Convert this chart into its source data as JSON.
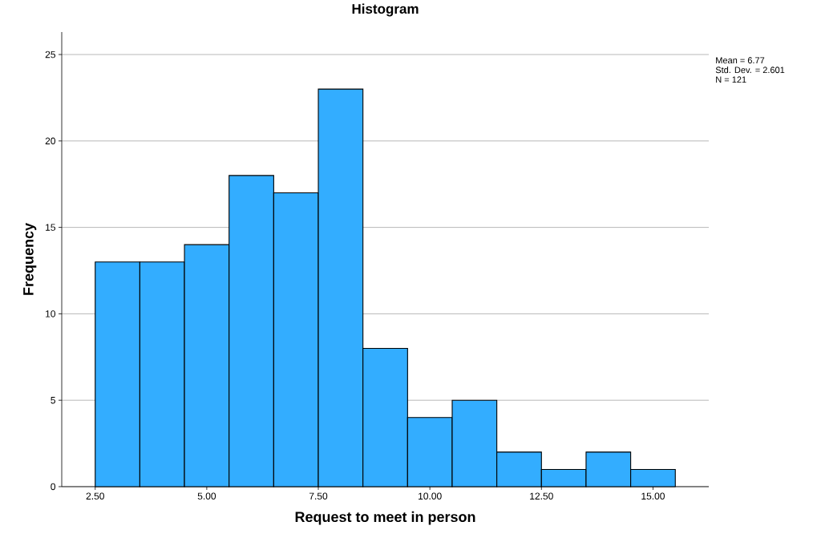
{
  "chart_data": {
    "type": "histogram",
    "title": "Histogram",
    "xlabel": "Request to meet in person",
    "ylabel": "Frequency",
    "bins": [
      2.5,
      3.5,
      4.5,
      5.5,
      6.5,
      7.5,
      8.5,
      9.5,
      10.5,
      11.5,
      12.5,
      13.5,
      14.5,
      15.5
    ],
    "values": [
      13,
      13,
      14,
      18,
      17,
      23,
      8,
      4,
      5,
      2,
      1,
      2,
      1
    ],
    "color": "#33adff",
    "xlim": [
      1.75,
      16.25
    ],
    "ylim": [
      0,
      26.3
    ],
    "xticks": [
      {
        "value": 2.5,
        "label": "2.50"
      },
      {
        "value": 5,
        "label": "5.00"
      },
      {
        "value": 7.5,
        "label": "7.50"
      },
      {
        "value": 10,
        "label": "10.00"
      },
      {
        "value": 12.5,
        "label": "12.50"
      },
      {
        "value": 15,
        "label": "15.00"
      }
    ],
    "yticks": [
      0,
      5,
      10,
      15,
      20,
      25
    ],
    "grid": "y",
    "annotations": [
      "Mean = 6.77",
      "Std. Dev. = 2.601",
      "N = 121"
    ]
  }
}
